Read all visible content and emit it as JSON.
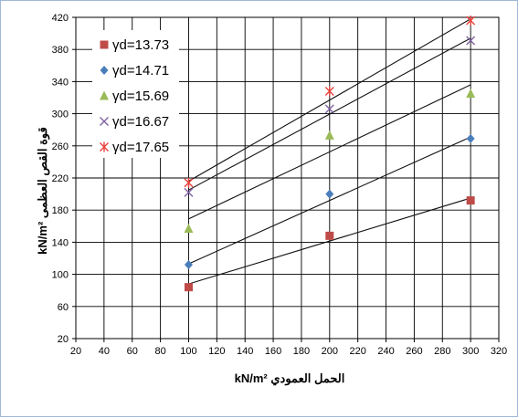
{
  "chart_data": {
    "type": "scatter",
    "xlabel": "الحمل العمودي  kN/m²",
    "ylabel": "قوة القص العظمى kN/m²",
    "xlim": [
      20,
      320
    ],
    "ylim": [
      20,
      420
    ],
    "xticks": [
      20,
      40,
      60,
      80,
      100,
      120,
      140,
      160,
      180,
      200,
      220,
      240,
      260,
      280,
      300,
      320
    ],
    "yticks": [
      20,
      60,
      100,
      140,
      180,
      220,
      260,
      300,
      340,
      380,
      420
    ],
    "grid": true,
    "legend_position": "top-left",
    "series": [
      {
        "name": "γd=13.73",
        "marker": "square",
        "color": "#be4b48",
        "x": [
          100,
          200,
          300
        ],
        "y": [
          84,
          148,
          192
        ],
        "trendline": {
          "x": [
            100,
            300
          ],
          "y": [
            88,
            195
          ]
        }
      },
      {
        "name": "γd=14.71",
        "marker": "diamond",
        "color": "#4a7ebb",
        "x": [
          100,
          200,
          300
        ],
        "y": [
          112,
          200,
          269
        ],
        "trendline": {
          "x": [
            100,
            300
          ],
          "y": [
            113,
            271
          ]
        }
      },
      {
        "name": "γd=15.69",
        "marker": "triangle",
        "color": "#9bbb59",
        "x": [
          100,
          200,
          300
        ],
        "y": [
          157,
          273,
          325
        ],
        "trendline": {
          "x": [
            100,
            300
          ],
          "y": [
            169,
            336
          ]
        }
      },
      {
        "name": "γd=16.67",
        "marker": "x",
        "color": "#8064a2",
        "x": [
          100,
          200,
          300
        ],
        "y": [
          202,
          306,
          391
        ],
        "trendline": {
          "x": [
            100,
            300
          ],
          "y": [
            205,
            394
          ]
        }
      },
      {
        "name": "γd=17.65",
        "marker": "asterisk",
        "color": "#e8413b",
        "x": [
          100,
          200,
          300
        ],
        "y": [
          214,
          328,
          416
        ],
        "trendline": {
          "x": [
            100,
            300
          ],
          "y": [
            216,
            418
          ]
        }
      }
    ]
  }
}
